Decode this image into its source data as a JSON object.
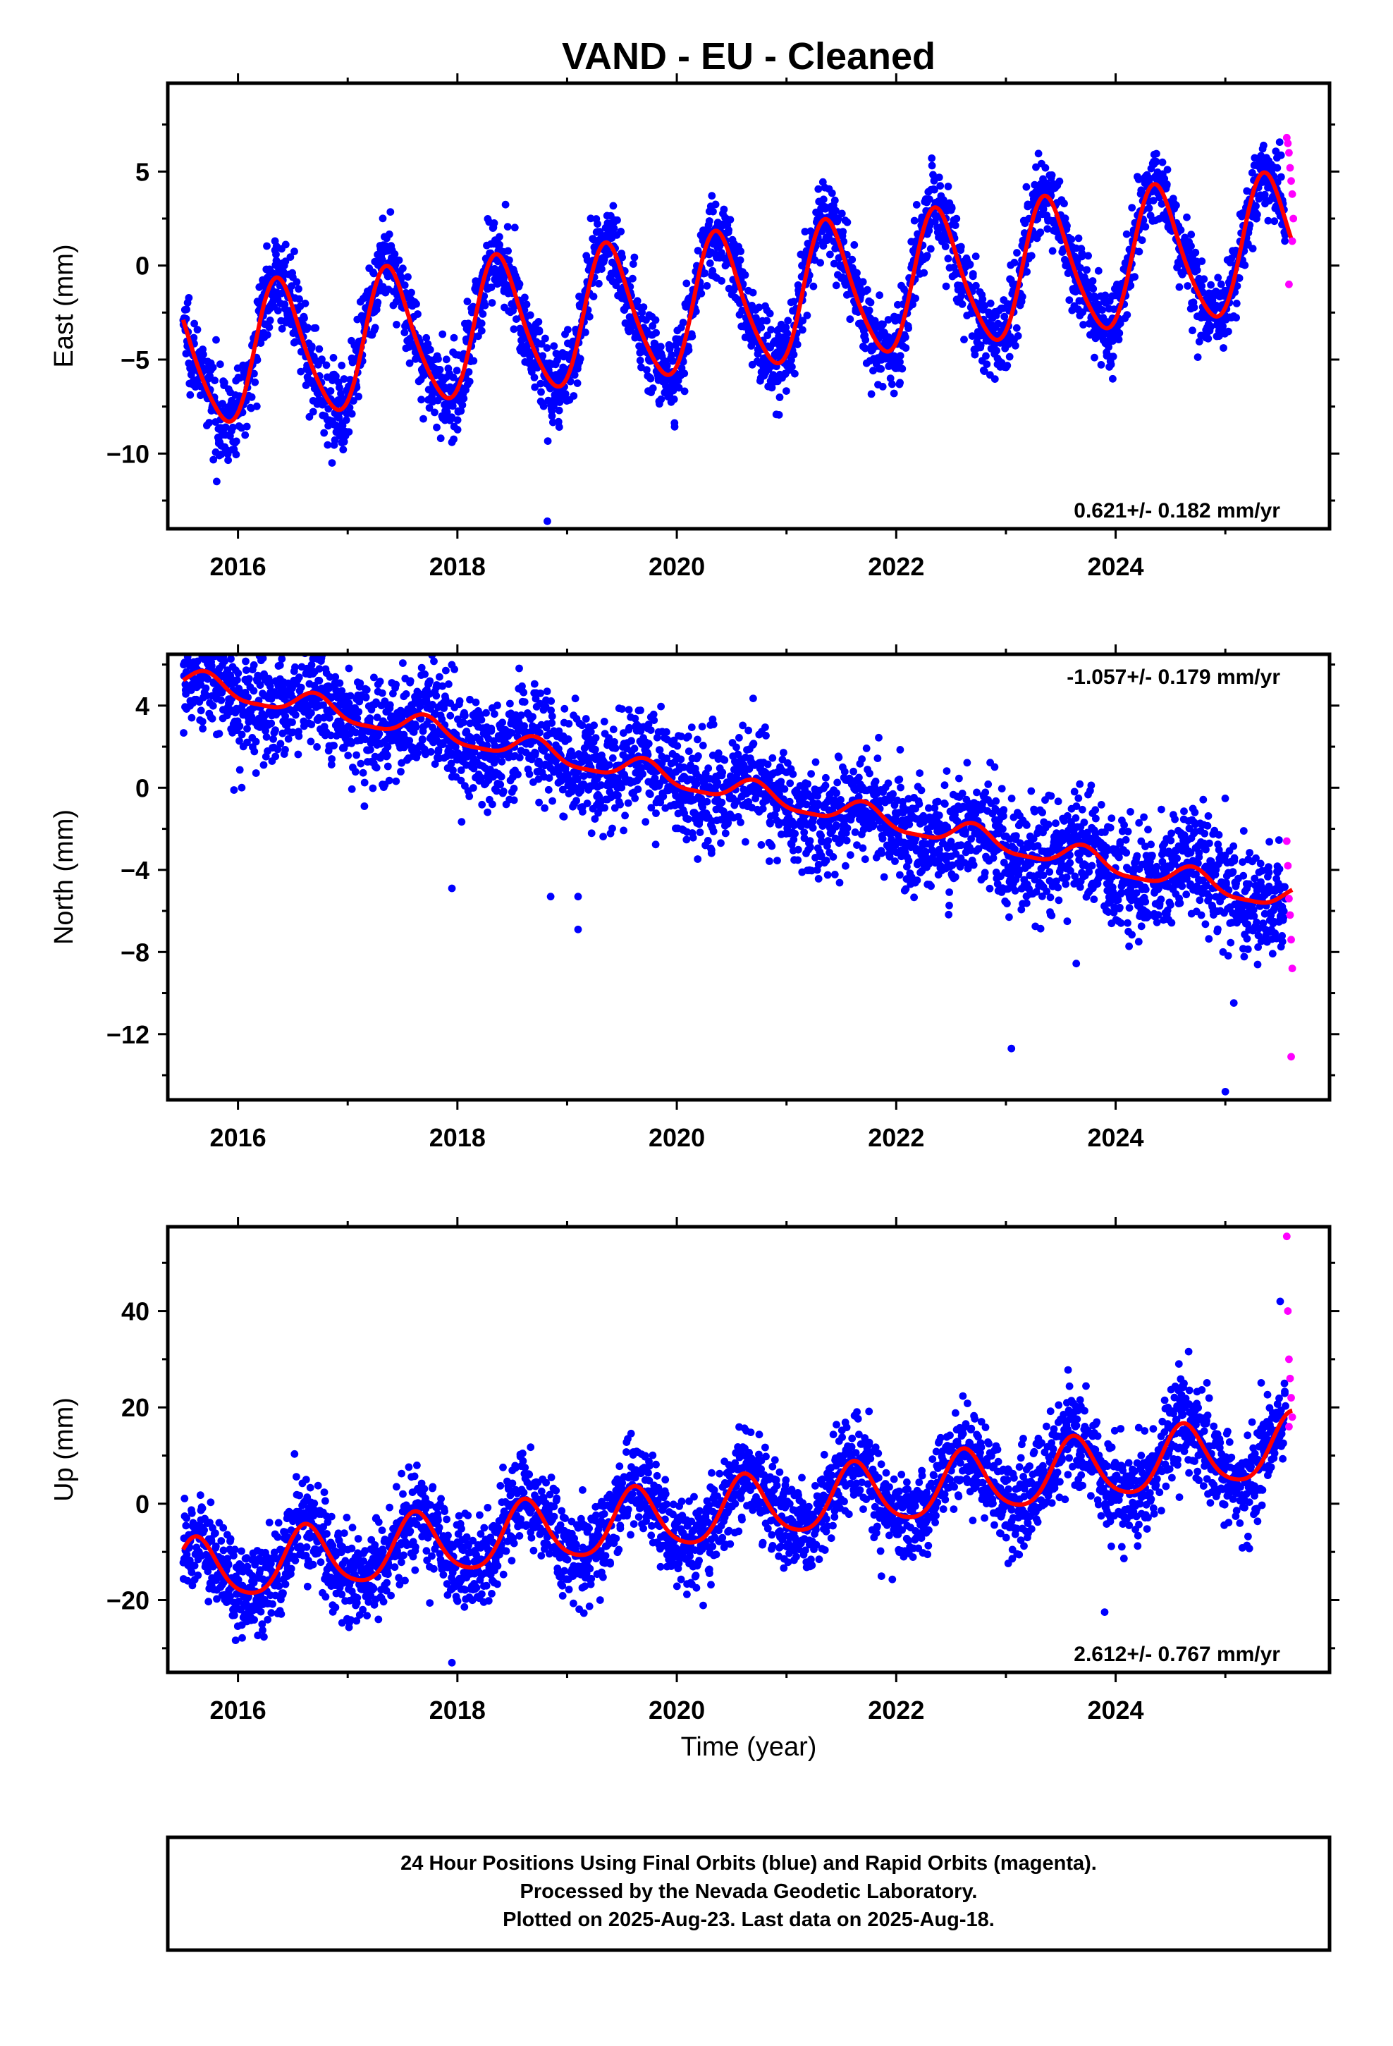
{
  "title": "VAND  - EU - Cleaned",
  "colors": {
    "final_orbits": "#0000ff",
    "rapid_orbits": "#ff00ff",
    "model_fit": "#ff0000",
    "frame": "#000000"
  },
  "x_axis_label": "Time (year)",
  "footer": {
    "line1": "24 Hour Positions Using Final Orbits (blue) and Rapid Orbits (magenta).",
    "line2": "Processed by the Nevada Geodetic Laboratory.",
    "line3": "Plotted on 2025-Aug-23. Last data on 2025-Aug-18."
  },
  "chart_data": [
    {
      "type": "scatter",
      "component": "East",
      "ylabel": "East (mm)",
      "xlim": [
        2015.36,
        2025.95
      ],
      "ylim": [
        -14.0,
        9.7
      ],
      "xticks": [
        2016,
        2018,
        2020,
        2022,
        2024
      ],
      "yticks": [
        -10,
        -5,
        0,
        5
      ],
      "rate": "0.621+/- 0.182 mm/yr",
      "rate_position": "bottom-right",
      "model": {
        "rate_mm_per_yr": 0.621,
        "offset_mm": -2.0,
        "reference_epoch": 2020.5,
        "annual_amp_mm": 3.6,
        "annual_peak_epoch": 0.38,
        "semiannual_amp_mm": 0.5,
        "semiannual_peak_epoch": 0.3
      },
      "series": [
        {
          "name": "Final Orbits",
          "color": "#0000ff",
          "x_range": [
            2015.5,
            2025.55
          ],
          "scatter_mm": 1.1,
          "count": 3200
        },
        {
          "name": "Rapid Orbits",
          "color": "#ff00ff",
          "x": [
            2025.56,
            2025.57,
            2025.58,
            2025.59,
            2025.6,
            2025.61,
            2025.62,
            2025.61,
            2025.58
          ],
          "y": [
            6.8,
            6.5,
            6.0,
            5.2,
            4.5,
            3.8,
            2.5,
            1.3,
            -1.0
          ]
        }
      ],
      "outliers": [
        [
          2017.95,
          -9.4
        ],
        [
          2018.82,
          -13.6
        ],
        [
          2021.98,
          -6.8
        ]
      ]
    },
    {
      "type": "scatter",
      "component": "North",
      "ylabel": "North (mm)",
      "xlim": [
        2015.36,
        2025.95
      ],
      "ylim": [
        -15.2,
        6.5
      ],
      "xticks": [
        2016,
        2018,
        2020,
        2022,
        2024
      ],
      "yticks": [
        -12,
        -8,
        -4,
        0,
        4
      ],
      "rate": "-1.057+/- 0.179 mm/yr",
      "rate_position": "top-right",
      "model": {
        "rate_mm_per_yr": -1.057,
        "offset_mm": -0.1,
        "reference_epoch": 2020.5,
        "annual_amp_mm": 0.55,
        "annual_peak_epoch": 0.7,
        "semiannual_amp_mm": 0.15,
        "semiannual_peak_epoch": 0.2
      },
      "series": [
        {
          "name": "Final Orbits",
          "color": "#0000ff",
          "x_range": [
            2015.5,
            2025.55
          ],
          "scatter_mm": 1.3,
          "count": 3200
        },
        {
          "name": "Rapid Orbits",
          "color": "#ff00ff",
          "x": [
            2025.56,
            2025.57,
            2025.58,
            2025.59,
            2025.6,
            2025.61,
            2025.6
          ],
          "y": [
            -2.6,
            -3.8,
            -5.4,
            -6.2,
            -7.4,
            -8.8,
            -13.1
          ]
        }
      ],
      "outliers": [
        [
          2017.95,
          -4.9
        ],
        [
          2018.85,
          -5.3
        ],
        [
          2019.1,
          -5.3
        ],
        [
          2019.1,
          -6.9
        ],
        [
          2023.05,
          -12.7
        ],
        [
          2025.0,
          -14.8
        ]
      ]
    },
    {
      "type": "scatter",
      "component": "Up",
      "ylabel": "Up (mm)",
      "xlim": [
        2015.36,
        2025.95
      ],
      "ylim": [
        -35.0,
        57.5
      ],
      "xticks": [
        2016,
        2018,
        2020,
        2022,
        2024
      ],
      "yticks": [
        -20,
        0,
        20,
        40
      ],
      "rate": "2.612+/- 0.767 mm/yr",
      "rate_position": "bottom-right",
      "model": {
        "rate_mm_per_yr": 2.612,
        "offset_mm": -1.5,
        "reference_epoch": 2020.5,
        "annual_amp_mm": 6.5,
        "annual_peak_epoch": 0.62,
        "semiannual_amp_mm": 1.0,
        "semiannual_peak_epoch": 0.1
      },
      "series": [
        {
          "name": "Final Orbits",
          "color": "#0000ff",
          "x_range": [
            2015.5,
            2025.55
          ],
          "scatter_mm": 4.8,
          "count": 3200
        },
        {
          "name": "Rapid Orbits",
          "color": "#ff00ff",
          "x": [
            2025.56,
            2025.57,
            2025.58,
            2025.59,
            2025.6,
            2025.61,
            2025.58
          ],
          "y": [
            55.5,
            40.0,
            30.0,
            26.0,
            22.0,
            18.0,
            16.0
          ]
        }
      ],
      "outliers": [
        [
          2017.95,
          -33.0
        ],
        [
          2023.9,
          -22.5
        ],
        [
          2025.5,
          42.0
        ]
      ]
    }
  ]
}
